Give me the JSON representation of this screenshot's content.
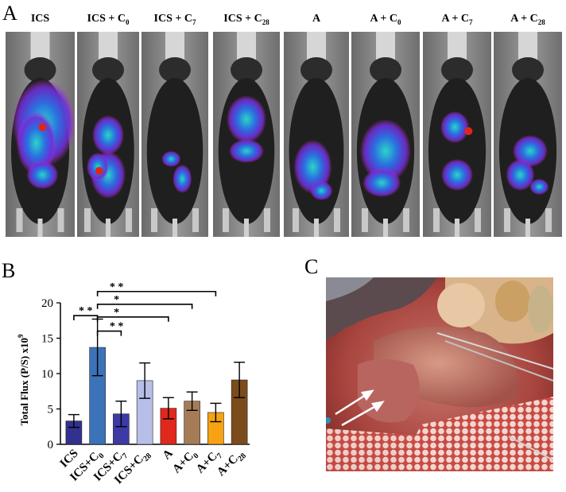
{
  "figure": {
    "panel_a_letter": "A",
    "panel_b_letter": "B",
    "panel_c_letter": "C"
  },
  "panel_a": {
    "labels": [
      {
        "text": "ICS",
        "sub": ""
      },
      {
        "text": "ICS + C",
        "sub": "0"
      },
      {
        "text": "ICS + C",
        "sub": "7"
      },
      {
        "text": "ICS + C",
        "sub": "28"
      },
      {
        "text": "A",
        "sub": ""
      },
      {
        "text": "A + C",
        "sub": "0"
      },
      {
        "text": "A + C",
        "sub": "7"
      },
      {
        "text": "A + C",
        "sub": "28"
      }
    ]
  },
  "chart_data": {
    "type": "bar",
    "ylabel": "Total Flux (P/S)  x10",
    "ylabel_superscript": "9",
    "ylim": [
      0,
      20
    ],
    "yticks": [
      0,
      5,
      10,
      15,
      20
    ],
    "categories": [
      {
        "text": "ICS",
        "sub": ""
      },
      {
        "text": "ICS+C",
        "sub": "0"
      },
      {
        "text": "ICS+C",
        "sub": "7"
      },
      {
        "text": "ICS+C",
        "sub": "28"
      },
      {
        "text": "A",
        "sub": ""
      },
      {
        "text": "A+C",
        "sub": "0"
      },
      {
        "text": "A+C",
        "sub": "7"
      },
      {
        "text": "A+C",
        "sub": "28"
      }
    ],
    "values": [
      3.3,
      13.7,
      4.3,
      9.0,
      5.1,
      6.1,
      4.5,
      9.1
    ],
    "errors": [
      0.9,
      4.0,
      1.8,
      2.5,
      1.5,
      1.3,
      1.3,
      2.5
    ],
    "colors": [
      "#33318f",
      "#3c73b8",
      "#3d3aa5",
      "#b7bfe9",
      "#e0281d",
      "#a67c57",
      "#f6a212",
      "#7c4b1c"
    ],
    "significance": [
      {
        "from": 0,
        "to": 1,
        "label": "* *"
      },
      {
        "from": 1,
        "to": 2,
        "label": "* *"
      },
      {
        "from": 1,
        "to": 4,
        "label": "*"
      },
      {
        "from": 1,
        "to": 5,
        "label": "*"
      },
      {
        "from": 1,
        "to": 6,
        "label": "* *"
      }
    ]
  }
}
